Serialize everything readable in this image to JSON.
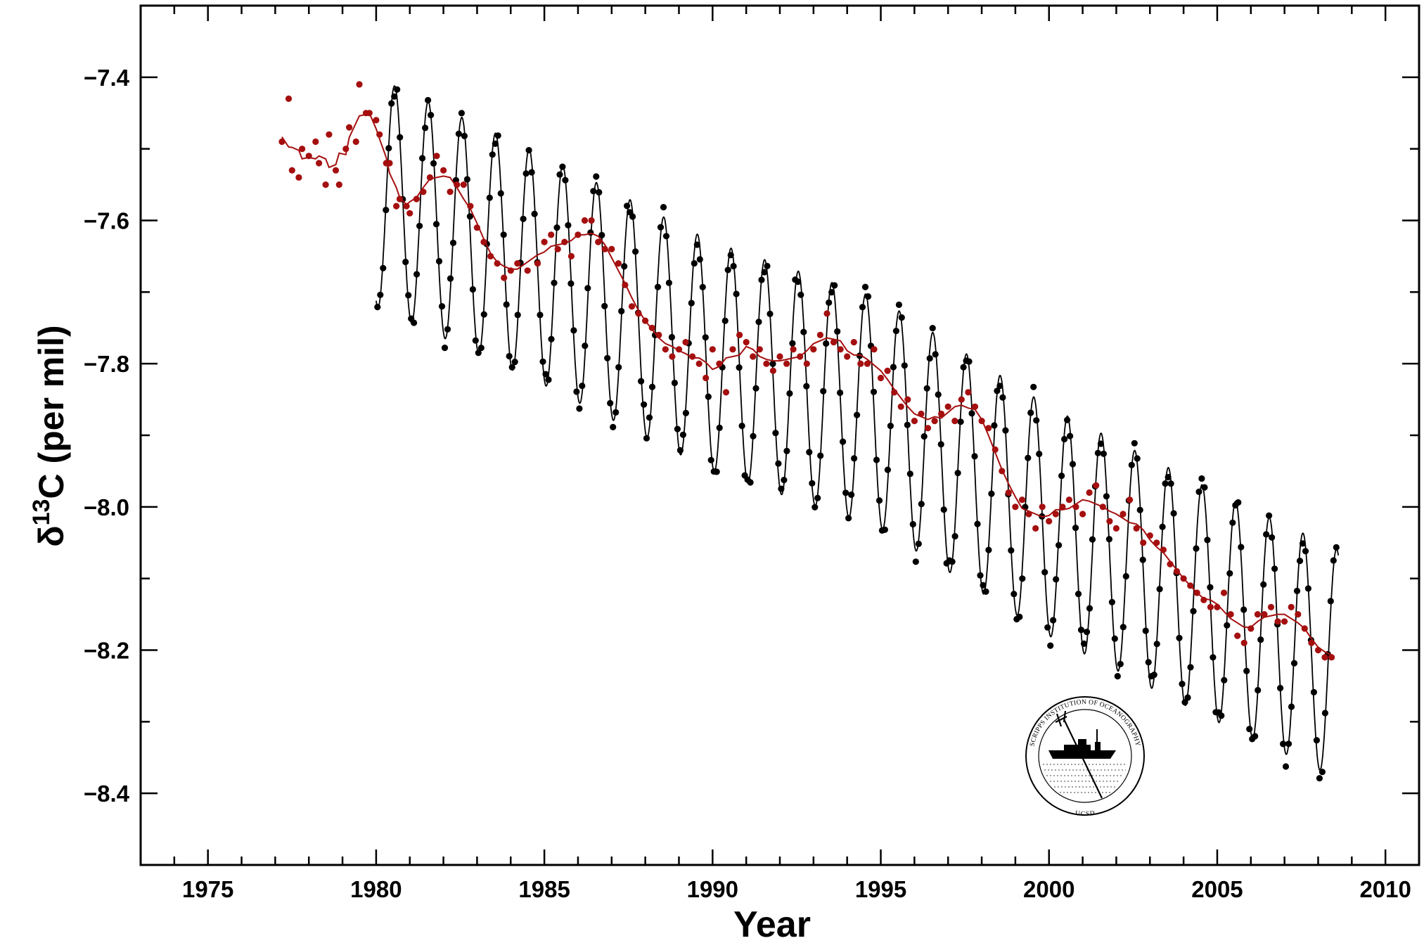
{
  "chart_data": {
    "type": "scatter",
    "title": "",
    "xlabel": "Year",
    "ylabel": "δ13C (per mil)",
    "ylabel_parts": {
      "symbol": "δ",
      "superscript": "13",
      "base": "C (per mil)"
    },
    "xlim": [
      1973,
      2011
    ],
    "ylim": [
      -8.5,
      -7.3
    ],
    "xticks": [
      1975,
      1980,
      1985,
      1990,
      1995,
      2000,
      2005,
      2010
    ],
    "xtick_labels": [
      "1975",
      "1980",
      "1985",
      "1990",
      "1995",
      "2000",
      "2005",
      "2010"
    ],
    "yticks": [
      -7.4,
      -7.6,
      -7.8,
      -8.0,
      -8.2,
      -8.4
    ],
    "ytick_labels": [
      "−7.4",
      "−7.6",
      "−7.8",
      "−8.0",
      "−8.2",
      "−8.4"
    ],
    "grid": false,
    "legend": false,
    "series": [
      {
        "kind": "monthly-observations",
        "color": "#000000",
        "x_range": [
          1980.0,
          2008.6
        ],
        "trend_anchors": [
          [
            1980.0,
            -7.56
          ],
          [
            1985.0,
            -7.67
          ],
          [
            1990.0,
            -7.79
          ],
          [
            1995.0,
            -7.87
          ],
          [
            2000.0,
            -8.02
          ],
          [
            2005.0,
            -8.14
          ],
          [
            2008.6,
            -8.22
          ]
        ],
        "seasonal_amplitude": 0.16
      },
      {
        "kind": "deseasonalized",
        "color": "#a50f0f",
        "x_range": [
          1977.2,
          2008.5
        ],
        "points": [
          [
            1977.2,
            -7.49
          ],
          [
            1977.4,
            -7.43
          ],
          [
            1977.5,
            -7.53
          ],
          [
            1977.7,
            -7.54
          ],
          [
            1977.8,
            -7.5
          ],
          [
            1978.0,
            -7.51
          ],
          [
            1978.2,
            -7.49
          ],
          [
            1978.3,
            -7.52
          ],
          [
            1978.5,
            -7.55
          ],
          [
            1978.6,
            -7.48
          ],
          [
            1978.8,
            -7.53
          ],
          [
            1978.9,
            -7.55
          ],
          [
            1979.1,
            -7.5
          ],
          [
            1979.2,
            -7.47
          ],
          [
            1979.4,
            -7.49
          ],
          [
            1979.5,
            -7.41
          ],
          [
            1979.7,
            -7.45
          ],
          [
            1979.8,
            -7.45
          ],
          [
            1980.0,
            -7.46
          ],
          [
            1980.1,
            -7.48
          ],
          [
            1980.3,
            -7.52
          ],
          [
            1980.4,
            -7.52
          ],
          [
            1980.6,
            -7.58
          ],
          [
            1980.7,
            -7.57
          ],
          [
            1980.9,
            -7.58
          ],
          [
            1981.0,
            -7.59
          ],
          [
            1981.2,
            -7.57
          ],
          [
            1981.4,
            -7.56
          ],
          [
            1981.6,
            -7.54
          ],
          [
            1981.8,
            -7.51
          ],
          [
            1982.0,
            -7.53
          ],
          [
            1982.2,
            -7.56
          ],
          [
            1982.4,
            -7.55
          ],
          [
            1982.6,
            -7.55
          ],
          [
            1982.8,
            -7.58
          ],
          [
            1983.0,
            -7.61
          ],
          [
            1983.2,
            -7.63
          ],
          [
            1983.4,
            -7.65
          ],
          [
            1983.6,
            -7.66
          ],
          [
            1983.8,
            -7.68
          ],
          [
            1984.0,
            -7.67
          ],
          [
            1984.2,
            -7.66
          ],
          [
            1984.5,
            -7.67
          ],
          [
            1984.8,
            -7.66
          ],
          [
            1985.0,
            -7.63
          ],
          [
            1985.2,
            -7.62
          ],
          [
            1985.4,
            -7.64
          ],
          [
            1985.6,
            -7.63
          ],
          [
            1985.8,
            -7.65
          ],
          [
            1986.0,
            -7.62
          ],
          [
            1986.2,
            -7.6
          ],
          [
            1986.4,
            -7.6
          ],
          [
            1986.6,
            -7.63
          ],
          [
            1986.8,
            -7.64
          ],
          [
            1987.0,
            -7.64
          ],
          [
            1987.2,
            -7.66
          ],
          [
            1987.4,
            -7.69
          ],
          [
            1987.6,
            -7.72
          ],
          [
            1987.8,
            -7.73
          ],
          [
            1988.0,
            -7.74
          ],
          [
            1988.2,
            -7.75
          ],
          [
            1988.4,
            -7.76
          ],
          [
            1988.6,
            -7.78
          ],
          [
            1988.8,
            -7.79
          ],
          [
            1989.0,
            -7.78
          ],
          [
            1989.2,
            -7.77
          ],
          [
            1989.4,
            -7.79
          ],
          [
            1989.6,
            -7.8
          ],
          [
            1989.8,
            -7.82
          ],
          [
            1990.0,
            -7.78
          ],
          [
            1990.2,
            -7.8
          ],
          [
            1990.4,
            -7.84
          ],
          [
            1990.6,
            -7.78
          ],
          [
            1990.8,
            -7.76
          ],
          [
            1991.0,
            -7.77
          ],
          [
            1991.2,
            -7.79
          ],
          [
            1991.4,
            -7.78
          ],
          [
            1991.6,
            -7.8
          ],
          [
            1991.8,
            -7.81
          ],
          [
            1992.0,
            -7.79
          ],
          [
            1992.2,
            -7.8
          ],
          [
            1992.4,
            -7.78
          ],
          [
            1992.6,
            -7.79
          ],
          [
            1992.8,
            -7.8
          ],
          [
            1993.0,
            -7.78
          ],
          [
            1993.2,
            -7.76
          ],
          [
            1993.4,
            -7.73
          ],
          [
            1993.6,
            -7.77
          ],
          [
            1993.8,
            -7.78
          ],
          [
            1994.0,
            -7.79
          ],
          [
            1994.2,
            -7.77
          ],
          [
            1994.4,
            -7.8
          ],
          [
            1994.6,
            -7.8
          ],
          [
            1994.8,
            -7.78
          ],
          [
            1995.0,
            -7.82
          ],
          [
            1995.2,
            -7.81
          ],
          [
            1995.4,
            -7.84
          ],
          [
            1995.6,
            -7.86
          ],
          [
            1995.8,
            -7.85
          ],
          [
            1996.0,
            -7.88
          ],
          [
            1996.2,
            -7.87
          ],
          [
            1996.4,
            -7.89
          ],
          [
            1996.6,
            -7.88
          ],
          [
            1996.8,
            -7.87
          ],
          [
            1997.0,
            -7.86
          ],
          [
            1997.2,
            -7.88
          ],
          [
            1997.4,
            -7.85
          ],
          [
            1997.6,
            -7.84
          ],
          [
            1997.8,
            -7.86
          ],
          [
            1998.0,
            -7.88
          ],
          [
            1998.2,
            -7.89
          ],
          [
            1998.4,
            -7.92
          ],
          [
            1998.6,
            -7.95
          ],
          [
            1998.8,
            -7.98
          ],
          [
            1999.0,
            -8.0
          ],
          [
            1999.2,
            -7.99
          ],
          [
            1999.4,
            -8.01
          ],
          [
            1999.6,
            -8.03
          ],
          [
            1999.8,
            -8.0
          ],
          [
            2000.0,
            -8.02
          ],
          [
            2000.2,
            -8.01
          ],
          [
            2000.4,
            -8.0
          ],
          [
            2000.6,
            -7.99
          ],
          [
            2000.8,
            -8.0
          ],
          [
            2001.0,
            -8.01
          ],
          [
            2001.2,
            -7.98
          ],
          [
            2001.4,
            -7.97
          ],
          [
            2001.6,
            -8.0
          ],
          [
            2001.8,
            -8.02
          ],
          [
            2002.0,
            -8.03
          ],
          [
            2002.2,
            -8.01
          ],
          [
            2002.4,
            -7.99
          ],
          [
            2002.6,
            -8.03
          ],
          [
            2002.8,
            -8.05
          ],
          [
            2003.0,
            -8.04
          ],
          [
            2003.2,
            -8.05
          ],
          [
            2003.4,
            -8.06
          ],
          [
            2003.6,
            -8.08
          ],
          [
            2003.8,
            -8.09
          ],
          [
            2004.0,
            -8.1
          ],
          [
            2004.2,
            -8.11
          ],
          [
            2004.4,
            -8.12
          ],
          [
            2004.6,
            -8.13
          ],
          [
            2004.8,
            -8.14
          ],
          [
            2005.0,
            -8.14
          ],
          [
            2005.2,
            -8.12
          ],
          [
            2005.4,
            -8.15
          ],
          [
            2005.6,
            -8.18
          ],
          [
            2005.8,
            -8.19
          ],
          [
            2006.0,
            -8.17
          ],
          [
            2006.2,
            -8.15
          ],
          [
            2006.4,
            -8.15
          ],
          [
            2006.6,
            -8.14
          ],
          [
            2006.8,
            -8.16
          ],
          [
            2007.0,
            -8.16
          ],
          [
            2007.2,
            -8.14
          ],
          [
            2007.4,
            -8.15
          ],
          [
            2007.6,
            -8.17
          ],
          [
            2007.8,
            -8.19
          ],
          [
            2008.0,
            -8.2
          ],
          [
            2008.2,
            -8.21
          ],
          [
            2008.4,
            -8.21
          ]
        ]
      }
    ]
  },
  "logo": {
    "top_text": "SCRIPPS INSTITUTION OF OCEANOGRAPHY",
    "bottom_text": "UCSD"
  }
}
